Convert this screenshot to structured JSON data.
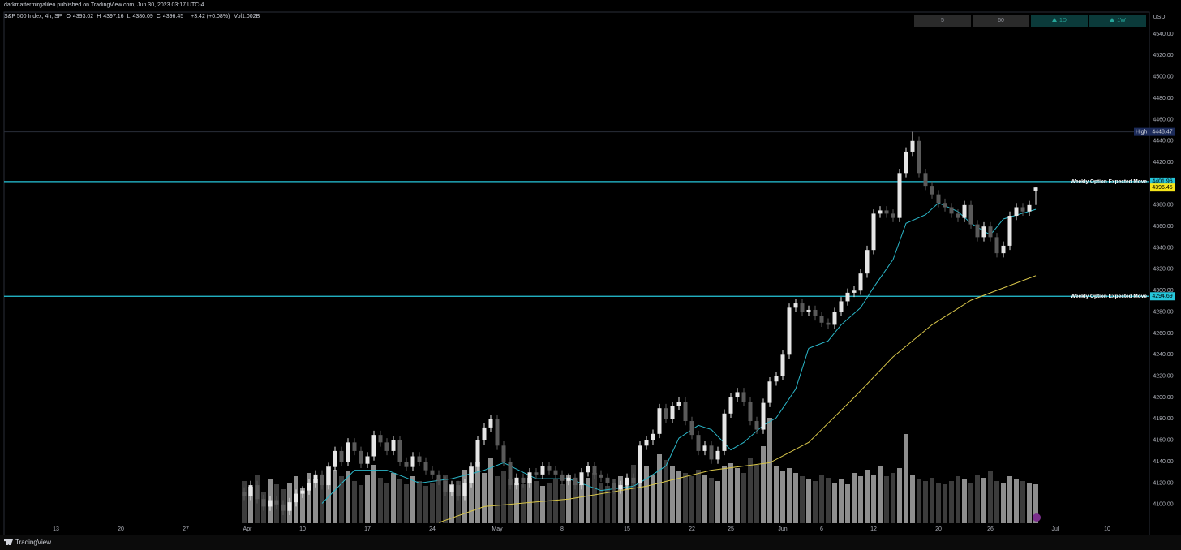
{
  "chart_data": {
    "type": "candlestick",
    "publisher": "darkmattermirgalileo published on TradingView.com, Jun 30, 2023 03:17 UTC-4",
    "symbol": "S&P 500 Index, 4h, SP",
    "ohlc_labels": [
      "O",
      "H",
      "L",
      "C"
    ],
    "change_text": "+3.42 (+0.08%)",
    "volume_text": "Vol1.002B",
    "currency": "USD",
    "timeframes": [
      "5",
      "60",
      "1D",
      "1W"
    ],
    "footer": "TradingView",
    "high_label": "High",
    "high_index": 103,
    "up_color": "#e6e6e6",
    "down_color": "#5a5a5a",
    "volume_up_color": "#8e8e8e",
    "volume_down_color": "#3c3c3c",
    "last_price_color": "#f5e51b",
    "grid": false,
    "xlim": [
      -37,
      139.5
    ],
    "ylim": [
      4071,
      4560.5
    ],
    "yticks": [
      {
        "value": 4100,
        "label": "4100.00"
      },
      {
        "value": 4120,
        "label": "4120.00"
      },
      {
        "value": 4140,
        "label": "4140.00"
      },
      {
        "value": 4160,
        "label": "4160.00"
      },
      {
        "value": 4180,
        "label": "4180.00"
      },
      {
        "value": 4200,
        "label": "4200.00"
      },
      {
        "value": 4220,
        "label": "4220.00"
      },
      {
        "value": 4240,
        "label": "4240.00"
      },
      {
        "value": 4260,
        "label": "4260.00"
      },
      {
        "value": 4280,
        "label": "4280.00"
      },
      {
        "value": 4300,
        "label": "4300.00"
      },
      {
        "value": 4320,
        "label": "4320.00"
      },
      {
        "value": 4340,
        "label": "4340.00"
      },
      {
        "value": 4360,
        "label": "4360.00"
      },
      {
        "value": 4380,
        "label": "4380.00"
      },
      {
        "value": 4400,
        "label": "4400.00"
      },
      {
        "value": 4420,
        "label": "4420.00"
      },
      {
        "value": 4440,
        "label": "4440.00"
      },
      {
        "value": 4460,
        "label": "4460.00"
      },
      {
        "value": 4480,
        "label": "4480.00"
      },
      {
        "value": 4500,
        "label": "4500.00"
      },
      {
        "value": 4520,
        "label": "4520.00"
      },
      {
        "value": 4540,
        "label": "4540.00"
      }
    ],
    "xticks": [
      {
        "value": -29,
        "label": "13"
      },
      {
        "value": -19,
        "label": "20"
      },
      {
        "value": -9,
        "label": "27"
      },
      {
        "value": 0.5,
        "label": "Apr"
      },
      {
        "value": 9,
        "label": "10"
      },
      {
        "value": 19,
        "label": "17"
      },
      {
        "value": 29,
        "label": "24"
      },
      {
        "value": 39,
        "label": "May"
      },
      {
        "value": 49,
        "label": "8"
      },
      {
        "value": 59,
        "label": "15"
      },
      {
        "value": 69,
        "label": "22"
      },
      {
        "value": 75,
        "label": "25"
      },
      {
        "value": 83,
        "label": "Jun"
      },
      {
        "value": 89,
        "label": "6"
      },
      {
        "value": 97,
        "label": "12"
      },
      {
        "value": 107,
        "label": "20"
      },
      {
        "value": 115,
        "label": "26"
      },
      {
        "value": 125,
        "label": "Jul"
      },
      {
        "value": 133,
        "label": "10"
      }
    ],
    "open": [
      4112,
      4108,
      4118,
      4105,
      4098,
      4104,
      4100,
      4094,
      4102,
      4110,
      4113,
      4120,
      4128,
      4118,
      4135,
      4150,
      4140,
      4158,
      4150,
      4138,
      4145,
      4165,
      4158,
      4150,
      4160,
      4140,
      4135,
      4145,
      4140,
      4132,
      4128,
      4122,
      4112,
      4118,
      4108,
      4120,
      4135,
      4160,
      4172,
      4180,
      4155,
      4140,
      4118,
      4125,
      4120,
      4130,
      4128,
      4136,
      4132,
      4128,
      4122,
      4125,
      4118,
      4130,
      4136,
      4128,
      4125,
      4120,
      4114,
      4118,
      4125,
      4120,
      4155,
      4160,
      4166,
      4190,
      4180,
      4192,
      4196,
      4178,
      4165,
      4150,
      4155,
      4142,
      4150,
      4185,
      4200,
      4205,
      4196,
      4178,
      4170,
      4195,
      4215,
      4220,
      4240,
      4284,
      4288,
      4280,
      4282,
      4276,
      4270,
      4268,
      4280,
      4290,
      4298,
      4300,
      4316,
      4338,
      4372,
      4375,
      4372,
      4368,
      4410,
      4430,
      4440,
      4410,
      4398,
      4390,
      4382,
      4378,
      4372,
      4368,
      4380,
      4362,
      4350,
      4360,
      4350,
      4335,
      4342,
      4370,
      4378,
      4374,
      4393.02
    ],
    "high": [
      4116,
      4122,
      4122,
      4109,
      4108,
      4108,
      4104,
      4106,
      4114,
      4117,
      4124,
      4132,
      4132,
      4139,
      4154,
      4154,
      4162,
      4162,
      4154,
      4149,
      4169,
      4169,
      4162,
      4164,
      4164,
      4144,
      4149,
      4149,
      4144,
      4136,
      4132,
      4126,
      4122,
      4122,
      4124,
      4139,
      4164,
      4176,
      4184,
      4184,
      4159,
      4144,
      4129,
      4129,
      4134,
      4134,
      4140,
      4140,
      4136,
      4132,
      4129,
      4129,
      4134,
      4140,
      4140,
      4132,
      4129,
      4124,
      4122,
      4129,
      4129,
      4159,
      4164,
      4170,
      4194,
      4194,
      4196,
      4200,
      4200,
      4182,
      4169,
      4159,
      4159,
      4154,
      4189,
      4204,
      4209,
      4209,
      4200,
      4182,
      4199,
      4219,
      4224,
      4244,
      4288,
      4292,
      4292,
      4286,
      4286,
      4280,
      4274,
      4284,
      4294,
      4302,
      4304,
      4320,
      4342,
      4376,
      4379,
      4379,
      4376,
      4414,
      4434,
      4448.47,
      4444,
      4414,
      4402,
      4394,
      4386,
      4382,
      4376,
      4384,
      4384,
      4366,
      4364,
      4364,
      4354,
      4346,
      4374,
      4382,
      4382,
      4384,
      4397.16
    ],
    "low": [
      4104,
      4104,
      4101,
      4094,
      4094,
      4096,
      4090,
      4090,
      4098,
      4106,
      4109,
      4116,
      4114,
      4114,
      4131,
      4136,
      4136,
      4146,
      4134,
      4134,
      4141,
      4154,
      4146,
      4146,
      4136,
      4131,
      4131,
      4136,
      4128,
      4124,
      4118,
      4108,
      4108,
      4104,
      4104,
      4116,
      4131,
      4156,
      4168,
      4151,
      4136,
      4114,
      4114,
      4116,
      4116,
      4124,
      4124,
      4128,
      4124,
      4118,
      4118,
      4114,
      4114,
      4126,
      4124,
      4121,
      4116,
      4110,
      4110,
      4114,
      4116,
      4116,
      4151,
      4156,
      4162,
      4176,
      4176,
      4188,
      4174,
      4161,
      4146,
      4146,
      4138,
      4138,
      4146,
      4181,
      4196,
      4192,
      4174,
      4166,
      4166,
      4191,
      4211,
      4216,
      4236,
      4280,
      4276,
      4276,
      4272,
      4266,
      4264,
      4264,
      4276,
      4286,
      4294,
      4296,
      4312,
      4334,
      4368,
      4368,
      4364,
      4364,
      4406,
      4426,
      4406,
      4394,
      4386,
      4378,
      4374,
      4368,
      4364,
      4364,
      4358,
      4346,
      4346,
      4346,
      4331,
      4331,
      4338,
      4366,
      4370,
      4370,
      4380.09
    ],
    "close": [
      4108,
      4118,
      4105,
      4098,
      4104,
      4100,
      4094,
      4102,
      4110,
      4113,
      4120,
      4128,
      4118,
      4135,
      4150,
      4140,
      4158,
      4150,
      4138,
      4145,
      4165,
      4158,
      4150,
      4160,
      4140,
      4135,
      4145,
      4140,
      4132,
      4128,
      4122,
      4112,
      4118,
      4108,
      4120,
      4135,
      4160,
      4172,
      4180,
      4155,
      4140,
      4118,
      4125,
      4120,
      4130,
      4128,
      4136,
      4132,
      4128,
      4122,
      4125,
      4118,
      4130,
      4136,
      4128,
      4125,
      4120,
      4114,
      4118,
      4125,
      4120,
      4155,
      4160,
      4166,
      4190,
      4180,
      4192,
      4196,
      4178,
      4165,
      4150,
      4155,
      4142,
      4150,
      4185,
      4200,
      4205,
      4196,
      4178,
      4170,
      4195,
      4215,
      4220,
      4240,
      4284,
      4288,
      4280,
      4282,
      4276,
      4270,
      4268,
      4280,
      4290,
      4298,
      4300,
      4316,
      4338,
      4372,
      4375,
      4372,
      4368,
      4410,
      4430,
      4440,
      4410,
      4398,
      4390,
      4382,
      4378,
      4372,
      4368,
      4380,
      4362,
      4350,
      4360,
      4350,
      4335,
      4342,
      4370,
      4378,
      4374,
      4380,
      4396.45
    ],
    "volume": [
      52,
      45,
      60,
      38,
      55,
      48,
      42,
      50,
      58,
      44,
      62,
      55,
      48,
      70,
      66,
      58,
      64,
      52,
      47,
      60,
      72,
      56,
      50,
      62,
      54,
      48,
      58,
      52,
      46,
      50,
      55,
      60,
      48,
      52,
      66,
      70,
      75,
      62,
      80,
      58,
      64,
      55,
      50,
      48,
      56,
      52,
      46,
      50,
      54,
      48,
      60,
      52,
      48,
      56,
      62,
      50,
      46,
      54,
      58,
      48,
      72,
      66,
      70,
      60,
      85,
      78,
      70,
      65,
      62,
      58,
      66,
      60,
      56,
      52,
      70,
      74,
      68,
      62,
      80,
      72,
      95,
      130,
      70,
      65,
      68,
      62,
      58,
      55,
      52,
      60,
      56,
      50,
      54,
      48,
      62,
      58,
      66,
      60,
      70,
      58,
      62,
      68,
      110,
      60,
      55,
      52,
      56,
      50,
      48,
      52,
      58,
      54,
      50,
      60,
      56,
      64,
      52,
      50,
      58,
      54,
      52,
      50,
      48
    ],
    "lines": [
      {
        "color": "#2bb7c9",
        "x": [
          12,
          17,
          22,
          27,
          32,
          37,
          40,
          45,
          50,
          55,
          60,
          62,
          65,
          67,
          70,
          72,
          75,
          77,
          80,
          82,
          85,
          87,
          90,
          92,
          95,
          97,
          100,
          102,
          105,
          107,
          110,
          112,
          115,
          117,
          122
        ],
        "values": [
          4101,
          4132,
          4132,
          4120,
          4124,
          4132,
          4139,
          4124,
          4124,
          4113,
          4117,
          4124,
          4136,
          4162,
          4174,
          4170,
          4151,
          4158,
          4174,
          4181,
          4208,
          4246,
          4253,
          4268,
          4284,
          4303,
          4329,
          4363,
          4371,
          4382,
          4374,
          4363,
          4352,
          4367,
          4376
        ]
      },
      {
        "color": "#d8c64a",
        "x": [
          30,
          37,
          50,
          62,
          72,
          81,
          87,
          94,
          100,
          106,
          112,
          122
        ],
        "values": [
          4083,
          4098,
          4105,
          4117,
          4132,
          4139,
          4158,
          4200,
          4238,
          4268,
          4291,
          4314
        ]
      }
    ],
    "hlines": [
      {
        "value": 4401.96,
        "label": "Weekly Option Expected Move",
        "color": "#26c6da"
      },
      {
        "value": 4294.69,
        "label": "Weekly Option Expected Move",
        "color": "#26c6da"
      }
    ]
  }
}
